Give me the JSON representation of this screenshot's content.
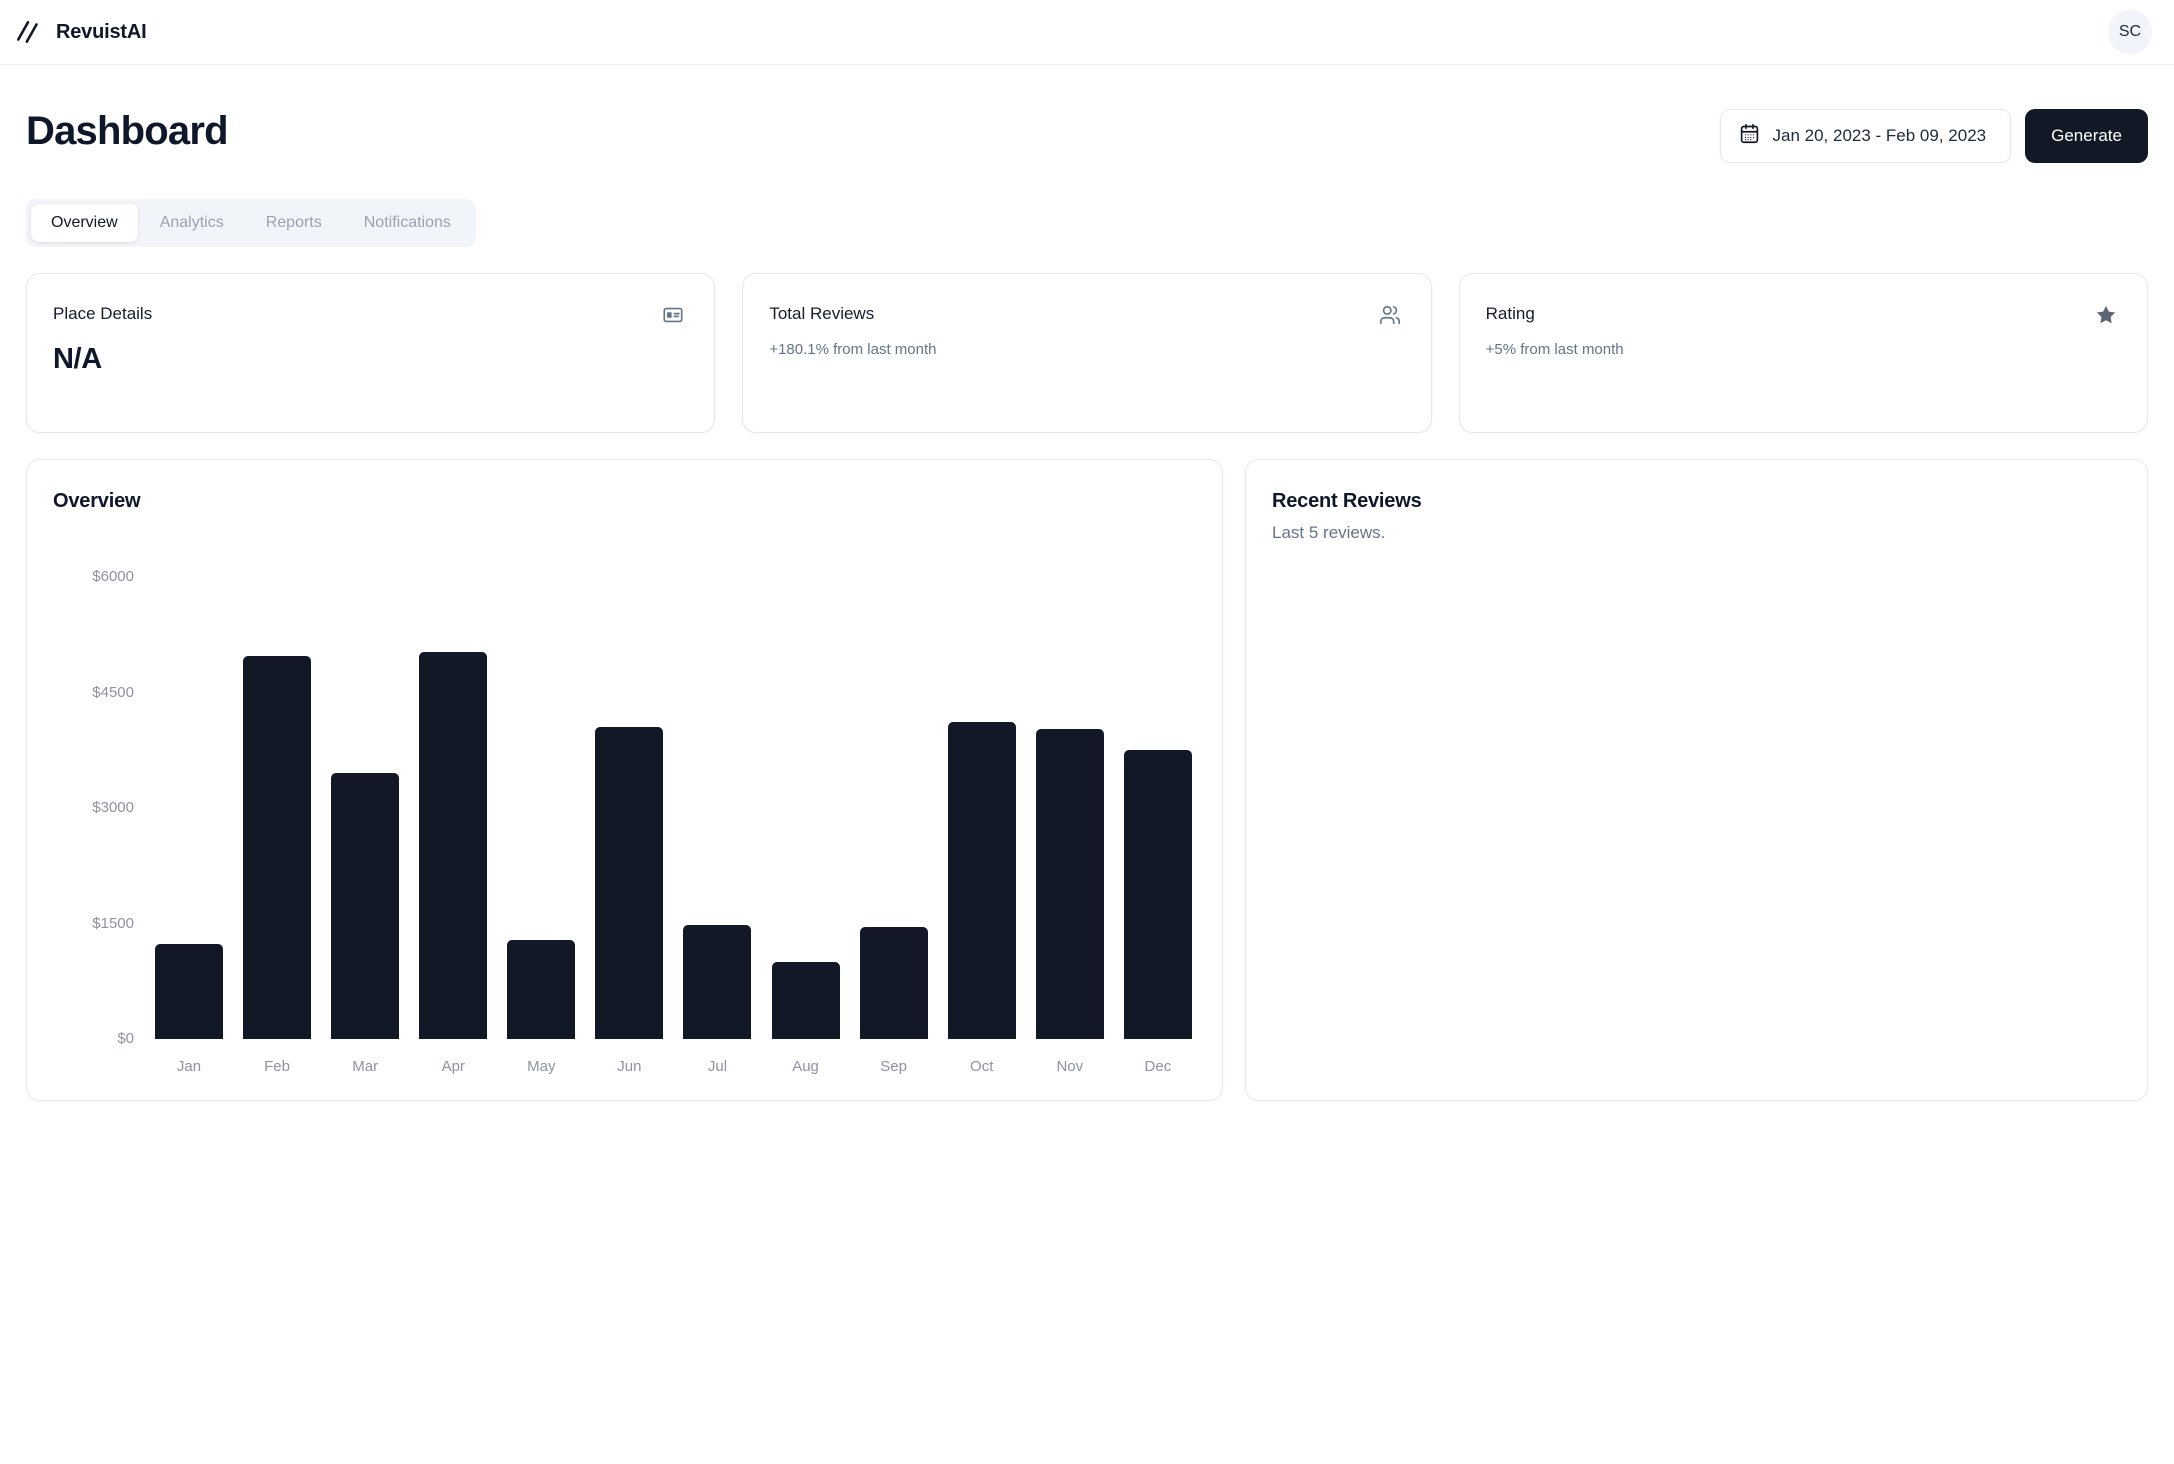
{
  "brand": {
    "name": "RevuistAI",
    "logo_icon": "double-slash-icon"
  },
  "header": {
    "avatar_initials": "SC"
  },
  "page": {
    "title": "Dashboard",
    "date_range": "Jan 20, 2023 - Feb 09, 2023",
    "generate_label": "Generate"
  },
  "tabs": [
    {
      "label": "Overview",
      "active": true
    },
    {
      "label": "Analytics",
      "active": false
    },
    {
      "label": "Reports",
      "active": false
    },
    {
      "label": "Notifications",
      "active": false
    }
  ],
  "stat_cards": [
    {
      "title": "Place Details",
      "value": "N/A",
      "subtext": "",
      "icon": "id-card-icon"
    },
    {
      "title": "Total Reviews",
      "value": "",
      "subtext": "+180.1% from last month",
      "icon": "users-icon"
    },
    {
      "title": "Rating",
      "value": "",
      "subtext": "+5% from last month",
      "icon": "star-icon"
    }
  ],
  "overview_card": {
    "title": "Overview"
  },
  "reviews_card": {
    "title": "Recent Reviews",
    "subtitle": "Last 5 reviews."
  },
  "chart_data": {
    "type": "bar",
    "title": "Overview",
    "categories": [
      "Jan",
      "Feb",
      "Mar",
      "Apr",
      "May",
      "Jun",
      "Jul",
      "Aug",
      "Sep",
      "Oct",
      "Nov",
      "Dec"
    ],
    "values": [
      1240,
      4980,
      3450,
      5020,
      1290,
      4050,
      1480,
      1000,
      1450,
      4120,
      4020,
      3750
    ],
    "xlabel": "",
    "ylabel": "",
    "ylim": [
      0,
      6000
    ],
    "y_ticks": [
      "$0",
      "$1500",
      "$3000",
      "$4500",
      "$6000"
    ],
    "grid": false,
    "legend": false,
    "bar_color": "#121826"
  },
  "colors": {
    "accent_dark": "#121826",
    "muted_text": "#64748b",
    "axis_text": "#8d93a0",
    "card_border": "#e5e8ef",
    "chip_bg": "#f1f4f8"
  }
}
